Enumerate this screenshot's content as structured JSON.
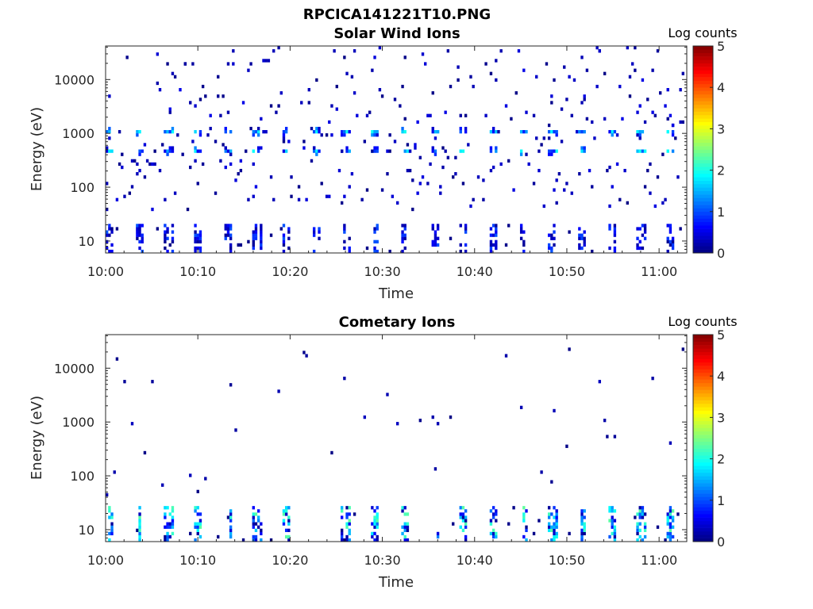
{
  "figure_title": "RPCICA141221T10.PNG",
  "colors": {
    "colormap": [
      "#00007f",
      "#0000ff",
      "#007fff",
      "#00ffff",
      "#7fff7f",
      "#ffff00",
      "#ff7f00",
      "#ff0000",
      "#7f0000"
    ]
  },
  "chart_data": [
    {
      "type": "heatmap",
      "title": "Solar Wind Ions",
      "xlabel": "Time",
      "ylabel": "Energy (eV)",
      "x_ticks": [
        "10:00",
        "10:10",
        "10:20",
        "10:30",
        "10:40",
        "10:50",
        "11:00"
      ],
      "x_tick_minutes": [
        0,
        10,
        20,
        30,
        40,
        50,
        60
      ],
      "xlim_minutes": [
        0,
        63
      ],
      "y_scale": "log",
      "y_ticks": [
        "10",
        "100",
        "1000",
        "10000"
      ],
      "y_tick_values": [
        10,
        100,
        1000,
        10000
      ],
      "ylim": [
        6,
        42000
      ],
      "colorbar": {
        "title": "Log counts",
        "ticks": [
          "0",
          "1",
          "2",
          "3",
          "4",
          "5"
        ],
        "range": [
          0,
          5
        ]
      },
      "features": {
        "period_minutes": 3.2,
        "low_energy_band": {
          "energy_range_eV": [
            6,
            20
          ],
          "log_counts": [
            0,
            1
          ]
        },
        "proton_peak": {
          "energy_eV": 1100,
          "log_counts": [
            0.5,
            2
          ]
        },
        "alpha_peak": {
          "energy_eV": 500,
          "log_counts": [
            0.5,
            2
          ]
        },
        "scattered_counts": {
          "energy_range_eV": [
            40,
            40000
          ],
          "log_counts": [
            0,
            0.5
          ]
        }
      }
    },
    {
      "type": "heatmap",
      "title": "Cometary Ions",
      "xlabel": "Time",
      "ylabel": "Energy (eV)",
      "x_ticks": [
        "10:00",
        "10:10",
        "10:20",
        "10:30",
        "10:40",
        "10:50",
        "11:00"
      ],
      "x_tick_minutes": [
        0,
        10,
        20,
        30,
        40,
        50,
        60
      ],
      "xlim_minutes": [
        0,
        63
      ],
      "y_scale": "log",
      "y_ticks": [
        "10",
        "100",
        "1000",
        "10000"
      ],
      "y_tick_values": [
        10,
        100,
        1000,
        10000
      ],
      "ylim": [
        6,
        42000
      ],
      "colorbar": {
        "title": "Log counts",
        "ticks": [
          "0",
          "1",
          "2",
          "3",
          "4",
          "5"
        ],
        "range": [
          0,
          5
        ]
      },
      "features": {
        "period_minutes": 3.2,
        "low_energy_band": {
          "energy_range_eV": [
            6,
            25
          ],
          "log_counts": [
            0,
            2.3
          ]
        },
        "scattered_counts": {
          "energy_range_eV": [
            40,
            22000
          ],
          "log_counts": [
            0,
            0.3
          ]
        }
      }
    }
  ]
}
